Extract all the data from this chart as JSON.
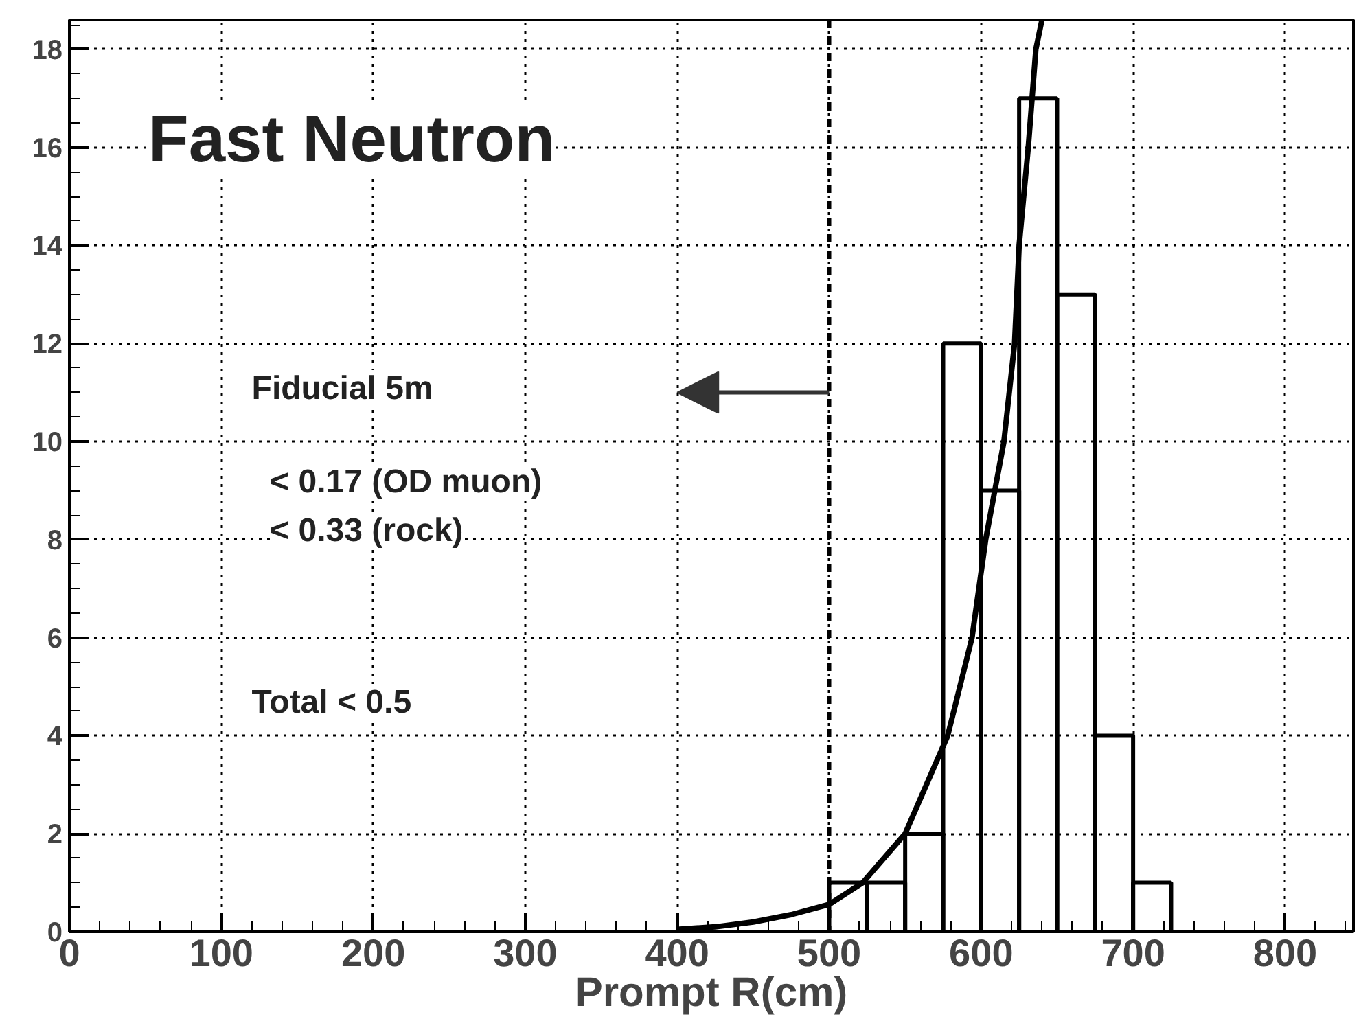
{
  "chart_data": {
    "type": "histogram",
    "xlabel": "Prompt R(cm)",
    "bins": [
      0,
      25,
      50,
      75,
      100,
      125,
      150,
      175,
      200,
      225,
      250,
      275,
      300,
      325,
      350,
      375,
      400,
      425,
      450,
      475,
      500,
      525,
      550,
      575,
      600,
      625,
      650,
      675,
      700,
      725,
      750,
      775,
      800,
      825
    ],
    "values": [
      0,
      0,
      0,
      0,
      0,
      0,
      0,
      0,
      0,
      0,
      0,
      0,
      0,
      0,
      0,
      0,
      0,
      0,
      0,
      0,
      1,
      1,
      2,
      12,
      9,
      17,
      13,
      4,
      1,
      0,
      0,
      0,
      0
    ],
    "color": "#000000",
    "series": [
      {
        "type": "line",
        "color": "#000000",
        "x": [
          400,
          425,
          450,
          475,
          500,
          522,
          550,
          578,
          594,
          603,
          615,
          622,
          625,
          631,
          636,
          640
        ],
        "values": [
          0.05,
          0.1,
          0.2,
          0.35,
          0.56,
          1,
          2,
          4,
          6,
          8,
          10,
          12,
          14,
          16,
          18,
          18.6
        ]
      }
    ],
    "xlim": [
      0,
      845
    ],
    "ylim": [
      0,
      18.6
    ],
    "xticks": [
      0,
      100,
      200,
      300,
      400,
      500,
      600,
      700,
      800
    ],
    "yticks": [
      0,
      2,
      4,
      6,
      8,
      10,
      12,
      14,
      16,
      18
    ],
    "grid": true,
    "line_style": "solid",
    "marker": "none",
    "ref_lines": [
      {
        "axis": "x",
        "value": 500,
        "line_style": "dashed"
      }
    ],
    "annotations": [
      "Fast Neutron",
      "Fiducial 5m",
      "< 0.17 (OD muon)",
      "< 0.33 (rock)",
      "Total  <  0.5"
    ]
  }
}
